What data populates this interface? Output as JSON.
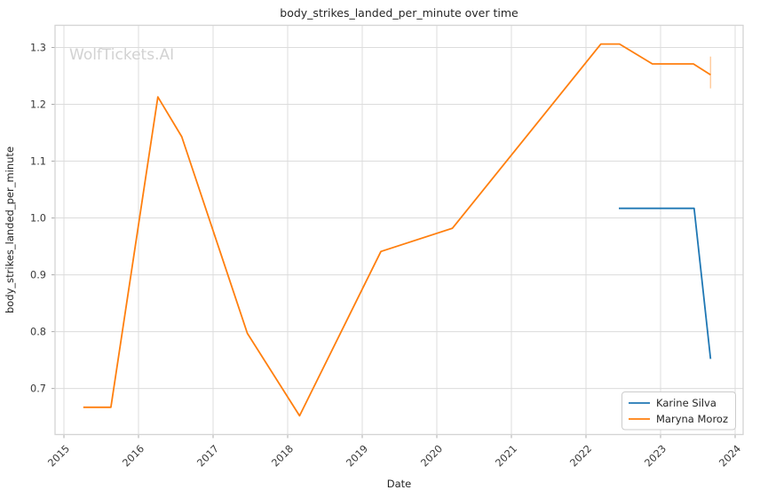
{
  "chart_data": {
    "type": "line",
    "title": "body_strikes_landed_per_minute over time",
    "xlabel": "Date",
    "ylabel": "body_strikes_landed_per_minute",
    "watermark": "WolfTickets.AI",
    "xlim": [
      2014.881,
      2024.107
    ],
    "ylim": [
      0.619,
      1.339
    ],
    "x_ticks": [
      2015,
      2016,
      2017,
      2018,
      2019,
      2020,
      2021,
      2022,
      2023,
      2024
    ],
    "y_ticks": [
      0.7,
      0.8,
      0.9,
      1.0,
      1.1,
      1.2,
      1.3
    ],
    "grid": true,
    "legend_position": "lower-right",
    "series": [
      {
        "name": "Karine Silva",
        "color": "#1f77b4",
        "x": [
          2022.44,
          2023.45,
          2023.67
        ],
        "y": [
          1.017,
          1.017,
          0.752
        ]
      },
      {
        "name": "Maryna Moroz",
        "color": "#ff7f0e",
        "x": [
          2015.26,
          2015.63,
          2016.26,
          2016.58,
          2017.46,
          2018.16,
          2019.25,
          2020.21,
          2022.2,
          2022.45,
          2022.89,
          2023.44,
          2023.67
        ],
        "y": [
          0.667,
          0.667,
          1.213,
          1.143,
          0.797,
          0.652,
          0.941,
          0.982,
          1.306,
          1.306,
          1.271,
          1.271,
          1.252
        ]
      }
    ],
    "end_marker": {
      "x": 2023.67,
      "y_from": 1.228,
      "y_to": 1.284,
      "color": "rgba(255,127,14,0.4)"
    }
  },
  "style_colors": {
    "grid": "#dcdcdc",
    "axis_border": "#d4d4d4",
    "tick_mark": "#ababab",
    "text": "#262626",
    "tick_text": "#3a3a3a",
    "watermark": "#d2d2d2",
    "background": "#ffffff",
    "legend_border": "#cccccc"
  }
}
